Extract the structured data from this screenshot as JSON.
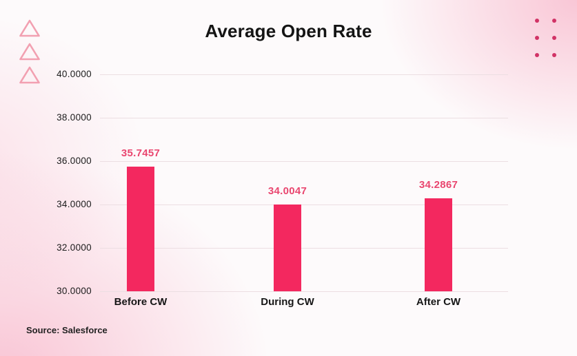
{
  "chart_data": {
    "type": "bar",
    "title": "Average Open Rate",
    "categories": [
      "Before CW",
      "During CW",
      "After CW"
    ],
    "values": [
      35.7457,
      34.0047,
      34.2867
    ],
    "data_labels": [
      "35.7457",
      "34.0047",
      "34.2867"
    ],
    "xlabel": "",
    "ylabel": "",
    "ylim": [
      30,
      40
    ],
    "y_ticks": [
      40,
      38,
      36,
      34,
      32,
      30
    ],
    "y_tick_labels": [
      "40.0000",
      "38.0000",
      "36.0000",
      "34.0000",
      "32.0000",
      "30.0000"
    ],
    "grid": true,
    "legend": false
  },
  "footer": {
    "source_label": "Source: Salesforce"
  },
  "colors": {
    "bar": "#F3285F",
    "value_label": "#E9466F",
    "gridline": "#ECDEE2",
    "triangle_stroke": "#F2A0B1",
    "dot": "#D13366",
    "text": "#161616"
  },
  "decorations": {
    "triangle_count": 3,
    "dots_rows": 3,
    "dots_cols": 2
  }
}
